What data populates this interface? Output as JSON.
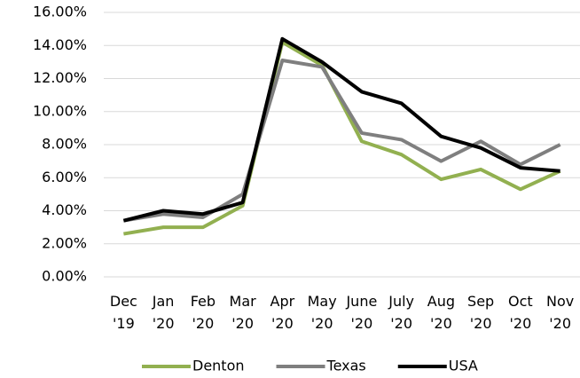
{
  "chart_data": {
    "type": "line",
    "categories": [
      "Dec '19",
      "Jan '20",
      "Feb '20",
      "Mar '20",
      "Apr '20",
      "May '20",
      "June '20",
      "July '20",
      "Aug '20",
      "Sep '20",
      "Oct '20",
      "Nov '20"
    ],
    "series": [
      {
        "name": "Denton",
        "color": "#92b050",
        "values": [
          2.6,
          3.0,
          3.0,
          4.3,
          14.2,
          12.8,
          8.2,
          7.4,
          5.9,
          6.5,
          5.3,
          6.4
        ]
      },
      {
        "name": "Texas",
        "color": "#7f7f7f",
        "values": [
          3.4,
          3.8,
          3.6,
          5.0,
          13.1,
          12.7,
          8.7,
          8.3,
          7.0,
          8.2,
          6.8,
          8.0
        ]
      },
      {
        "name": "USA",
        "color": "#000000",
        "values": [
          3.4,
          4.0,
          3.8,
          4.5,
          14.4,
          13.0,
          11.2,
          10.5,
          8.5,
          7.8,
          6.6,
          6.4
        ]
      }
    ],
    "ylim": [
      0,
      16
    ],
    "yticks": [
      {
        "value": 0,
        "label": "0.00%"
      },
      {
        "value": 2,
        "label": "2.00%"
      },
      {
        "value": 4,
        "label": "4.00%"
      },
      {
        "value": 6,
        "label": "6.00%"
      },
      {
        "value": 8,
        "label": "8.00%"
      },
      {
        "value": 10,
        "label": "10.00%"
      },
      {
        "value": 12,
        "label": "12.00%"
      },
      {
        "value": 14,
        "label": "14.00%"
      },
      {
        "value": 16,
        "label": "16.00%"
      }
    ],
    "grid": true,
    "legend": "bottom"
  }
}
